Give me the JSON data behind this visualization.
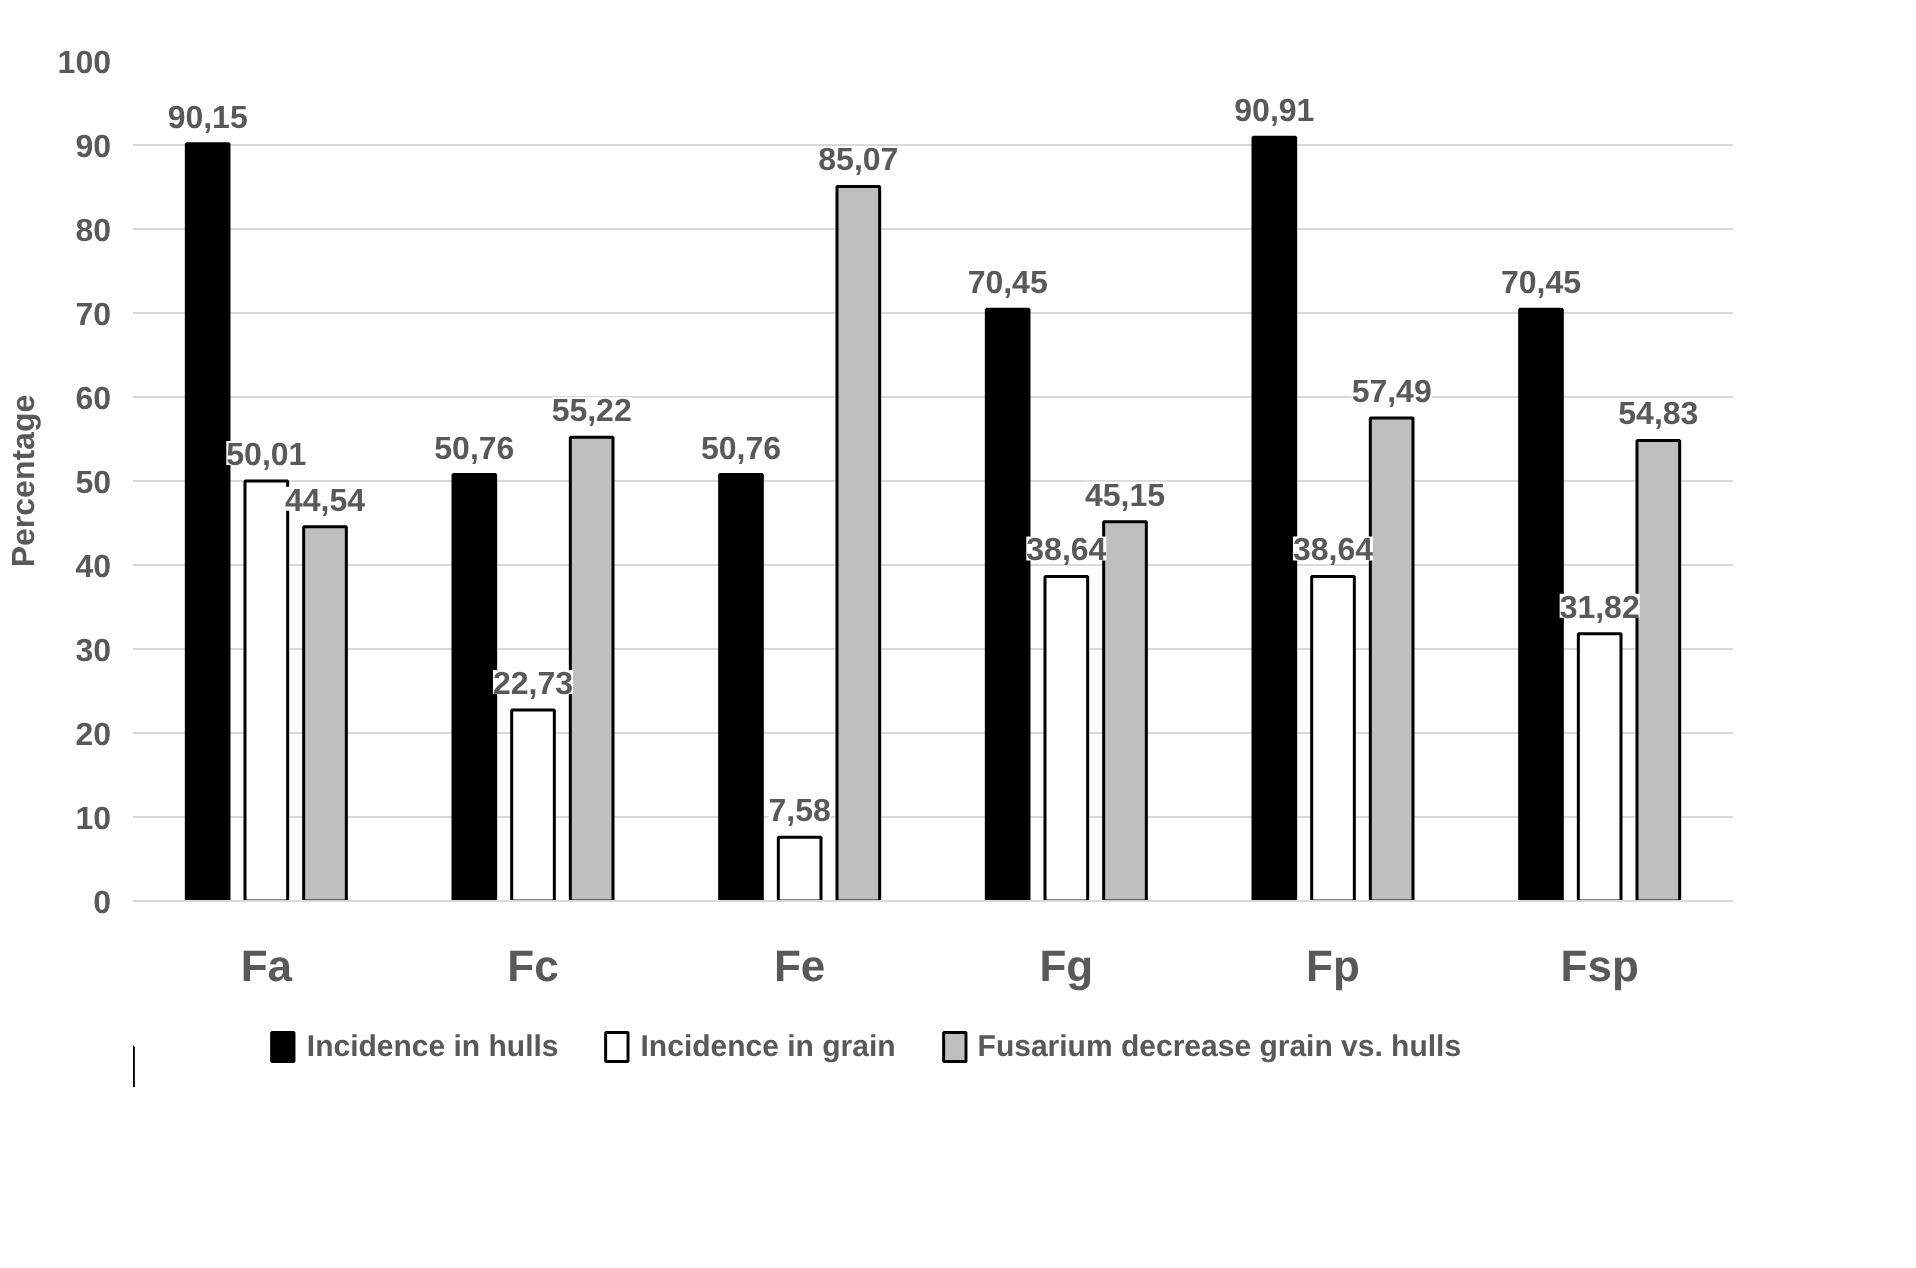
{
  "chart_data": {
    "type": "bar",
    "ylabel": "Percentage",
    "categories": [
      "Fa",
      "Fc",
      "Fe",
      "Fg",
      "Fp",
      "Fsp"
    ],
    "series": [
      {
        "name": "Incidence in hulls",
        "color": "#000000",
        "values": [
          90.15,
          50.76,
          50.76,
          70.45,
          90.91,
          70.45
        ],
        "value_labels": [
          "90,15",
          "50,76",
          "50,76",
          "70,45",
          "90,91",
          "70,45"
        ]
      },
      {
        "name": "Incidence in grain",
        "color": "#ffffff",
        "values": [
          50.01,
          22.73,
          7.58,
          38.64,
          38.64,
          31.82
        ],
        "value_labels": [
          "50,01",
          "22,73",
          "7,58",
          "38,64",
          "38,64",
          "31,82"
        ]
      },
      {
        "name": "Fusarium decrease grain vs. hulls",
        "color": "#bfbfbf",
        "values": [
          44.54,
          55.22,
          85.07,
          45.15,
          57.49,
          54.83
        ],
        "value_labels": [
          "44,54",
          "55,22",
          "85,07",
          "45,15",
          "57,49",
          "54,83"
        ]
      }
    ],
    "ylim": [
      0,
      100
    ],
    "yticks": [
      0,
      10,
      20,
      30,
      40,
      50,
      60,
      70,
      80,
      90,
      100
    ],
    "grid": "y",
    "legend": "bottom"
  }
}
